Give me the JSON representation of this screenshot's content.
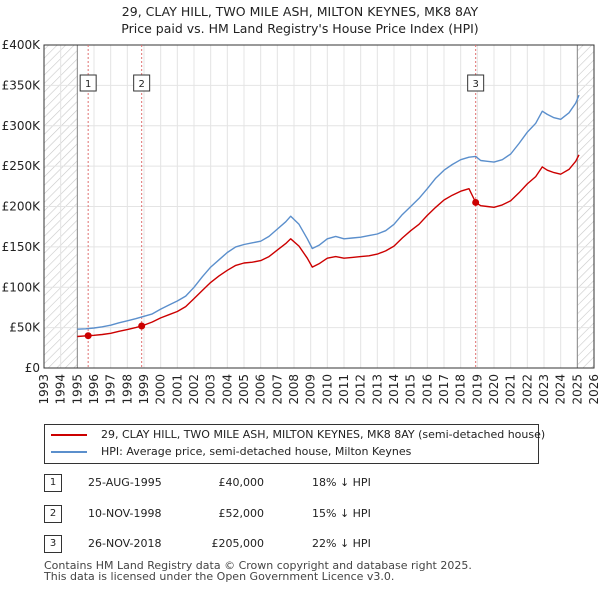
{
  "chart_title_line1": "29, CLAY HILL, TWO MILE ASH, MILTON KEYNES, MK8 8AY",
  "chart_title_line2": "Price paid vs. HM Land Registry's House Price Index (HPI)",
  "colors": {
    "property": "#cc0000",
    "hpi": "#5b8fcc",
    "vline": "#e07070",
    "hatch": "#c8c8c8",
    "grid": "#e4e4e4"
  },
  "legend": {
    "property_label": "29, CLAY HILL, TWO MILE ASH, MILTON KEYNES, MK8 8AY (semi-detached house)",
    "hpi_label": "HPI: Average price, semi-detached house, Milton Keynes"
  },
  "sales": [
    {
      "num": "1",
      "date": "25-AUG-1995",
      "price": "£40,000",
      "hpi_diff": "18% ↓ HPI"
    },
    {
      "num": "2",
      "date": "10-NOV-1998",
      "price": "£52,000",
      "hpi_diff": "15% ↓ HPI"
    },
    {
      "num": "3",
      "date": "26-NOV-2018",
      "price": "£205,000",
      "hpi_diff": "22% ↓ HPI"
    }
  ],
  "footer_line1": "Contains HM Land Registry data © Crown copyright and database right 2025.",
  "footer_line2": "This data is licensed under the Open Government Licence v3.0.",
  "chart_data": {
    "type": "line",
    "title": "29, CLAY HILL, TWO MILE ASH, MILTON KEYNES, MK8 8AY — Price paid vs. HM Land Registry's House Price Index (HPI)",
    "xlabel": "",
    "ylabel": "",
    "xlim": [
      1993,
      2026
    ],
    "ylim": [
      0,
      400000
    ],
    "x_ticks": [
      "1993",
      "1994",
      "1995",
      "1996",
      "1997",
      "1998",
      "1999",
      "2000",
      "2001",
      "2002",
      "2003",
      "2004",
      "2005",
      "2006",
      "2007",
      "2008",
      "2009",
      "2010",
      "2011",
      "2012",
      "2013",
      "2014",
      "2015",
      "2016",
      "2017",
      "2018",
      "2019",
      "2020",
      "2021",
      "2022",
      "2023",
      "2024",
      "2025",
      "2026"
    ],
    "y_ticks": [
      {
        "value": 0,
        "label": "£0"
      },
      {
        "value": 50000,
        "label": "£50K"
      },
      {
        "value": 100000,
        "label": "£100K"
      },
      {
        "value": 150000,
        "label": "£150K"
      },
      {
        "value": 200000,
        "label": "£200K"
      },
      {
        "value": 250000,
        "label": "£250K"
      },
      {
        "value": 300000,
        "label": "£300K"
      },
      {
        "value": 350000,
        "label": "£350K"
      },
      {
        "value": 400000,
        "label": "£400K"
      }
    ],
    "hatched_ranges": [
      [
        1993,
        1995.0
      ],
      [
        2025.0,
        2026
      ]
    ],
    "sale_markers": [
      {
        "label": "1",
        "x": 1995.65,
        "y": 40000
      },
      {
        "label": "2",
        "x": 1998.86,
        "y": 52000
      },
      {
        "label": "3",
        "x": 2018.9,
        "y": 205000
      }
    ],
    "series": [
      {
        "name": "HPI: Average price, semi-detached house, Milton Keynes",
        "color": "#5b8fcc",
        "points": [
          [
            1995.0,
            48000
          ],
          [
            1995.5,
            48500
          ],
          [
            1996.0,
            49500
          ],
          [
            1996.5,
            51000
          ],
          [
            1997.0,
            53000
          ],
          [
            1997.5,
            56000
          ],
          [
            1998.0,
            58500
          ],
          [
            1998.5,
            61000
          ],
          [
            1999.0,
            64000
          ],
          [
            1999.5,
            67000
          ],
          [
            2000.0,
            73000
          ],
          [
            2000.5,
            78000
          ],
          [
            2001.0,
            83000
          ],
          [
            2001.5,
            89000
          ],
          [
            2002.0,
            100000
          ],
          [
            2002.5,
            113000
          ],
          [
            2003.0,
            125000
          ],
          [
            2003.5,
            134000
          ],
          [
            2004.0,
            143000
          ],
          [
            2004.5,
            150000
          ],
          [
            2005.0,
            153000
          ],
          [
            2005.5,
            155000
          ],
          [
            2006.0,
            157000
          ],
          [
            2006.5,
            163000
          ],
          [
            2007.0,
            172000
          ],
          [
            2007.5,
            181000
          ],
          [
            2007.8,
            188000
          ],
          [
            2008.3,
            178000
          ],
          [
            2008.8,
            160000
          ],
          [
            2009.1,
            148000
          ],
          [
            2009.5,
            152000
          ],
          [
            2010.0,
            160000
          ],
          [
            2010.5,
            163000
          ],
          [
            2011.0,
            160000
          ],
          [
            2011.5,
            161000
          ],
          [
            2012.0,
            162000
          ],
          [
            2012.5,
            164000
          ],
          [
            2013.0,
            166000
          ],
          [
            2013.5,
            170000
          ],
          [
            2014.0,
            178000
          ],
          [
            2014.5,
            190000
          ],
          [
            2015.0,
            200000
          ],
          [
            2015.5,
            210000
          ],
          [
            2016.0,
            222000
          ],
          [
            2016.5,
            235000
          ],
          [
            2017.0,
            245000
          ],
          [
            2017.5,
            252000
          ],
          [
            2018.0,
            258000
          ],
          [
            2018.5,
            261000
          ],
          [
            2018.9,
            262000
          ],
          [
            2019.2,
            257000
          ],
          [
            2019.6,
            256000
          ],
          [
            2020.0,
            255000
          ],
          [
            2020.5,
            258000
          ],
          [
            2021.0,
            265000
          ],
          [
            2021.5,
            278000
          ],
          [
            2022.0,
            292000
          ],
          [
            2022.5,
            303000
          ],
          [
            2022.9,
            318000
          ],
          [
            2023.2,
            314000
          ],
          [
            2023.6,
            310000
          ],
          [
            2024.0,
            308000
          ],
          [
            2024.5,
            316000
          ],
          [
            2024.9,
            328000
          ],
          [
            2025.1,
            338000
          ]
        ]
      },
      {
        "name": "29, CLAY HILL, TWO MILE ASH, MILTON KEYNES, MK8 8AY (semi-detached house)",
        "color": "#cc0000",
        "points": [
          [
            1995.0,
            39000
          ],
          [
            1995.65,
            40000
          ],
          [
            1996.0,
            40500
          ],
          [
            1996.5,
            41500
          ],
          [
            1997.0,
            43000
          ],
          [
            1997.5,
            45500
          ],
          [
            1998.0,
            47500
          ],
          [
            1998.5,
            50000
          ],
          [
            1998.86,
            52000
          ],
          [
            1999.5,
            57000
          ],
          [
            2000.0,
            62000
          ],
          [
            2000.5,
            66000
          ],
          [
            2001.0,
            70000
          ],
          [
            2001.5,
            76000
          ],
          [
            2002.0,
            86000
          ],
          [
            2002.5,
            96000
          ],
          [
            2003.0,
            106000
          ],
          [
            2003.5,
            114000
          ],
          [
            2004.0,
            121000
          ],
          [
            2004.5,
            127000
          ],
          [
            2005.0,
            130000
          ],
          [
            2005.5,
            131000
          ],
          [
            2006.0,
            133000
          ],
          [
            2006.5,
            138000
          ],
          [
            2007.0,
            146000
          ],
          [
            2007.5,
            154000
          ],
          [
            2007.8,
            160000
          ],
          [
            2008.3,
            151000
          ],
          [
            2008.8,
            136000
          ],
          [
            2009.1,
            125000
          ],
          [
            2009.5,
            129000
          ],
          [
            2010.0,
            136000
          ],
          [
            2010.5,
            138000
          ],
          [
            2011.0,
            136000
          ],
          [
            2011.5,
            137000
          ],
          [
            2012.0,
            138000
          ],
          [
            2012.5,
            139000
          ],
          [
            2013.0,
            141000
          ],
          [
            2013.5,
            145000
          ],
          [
            2014.0,
            151000
          ],
          [
            2014.5,
            161000
          ],
          [
            2015.0,
            170000
          ],
          [
            2015.5,
            178000
          ],
          [
            2016.0,
            189000
          ],
          [
            2016.5,
            199000
          ],
          [
            2017.0,
            208000
          ],
          [
            2017.5,
            214000
          ],
          [
            2018.0,
            219000
          ],
          [
            2018.5,
            222000
          ],
          [
            2018.9,
            205000
          ],
          [
            2019.2,
            201000
          ],
          [
            2019.6,
            200000
          ],
          [
            2020.0,
            199000
          ],
          [
            2020.5,
            202000
          ],
          [
            2021.0,
            207000
          ],
          [
            2021.5,
            217000
          ],
          [
            2022.0,
            228000
          ],
          [
            2022.5,
            237000
          ],
          [
            2022.9,
            249000
          ],
          [
            2023.2,
            245000
          ],
          [
            2023.6,
            242000
          ],
          [
            2024.0,
            240000
          ],
          [
            2024.5,
            246000
          ],
          [
            2024.9,
            256000
          ],
          [
            2025.1,
            264000
          ]
        ]
      }
    ]
  }
}
